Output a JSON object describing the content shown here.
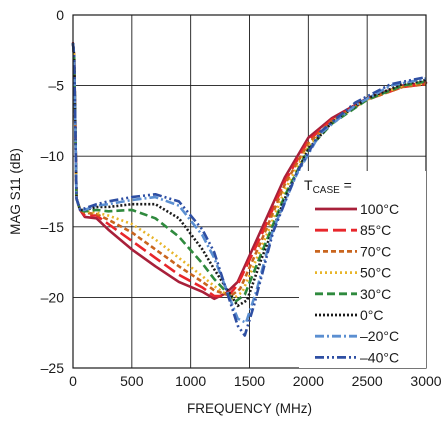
{
  "chart_data": {
    "type": "line",
    "title": "",
    "xlabel": "FREQUENCY (MHz)",
    "ylabel": "MAG S11 (dB)",
    "xlim": [
      0,
      3000
    ],
    "ylim": [
      -25,
      0
    ],
    "xticks": [
      0,
      500,
      1000,
      1500,
      2000,
      2500,
      3000
    ],
    "yticks": [
      0,
      -5,
      -10,
      -15,
      -20,
      -25
    ],
    "ytick_labels": [
      "0",
      "–5",
      "–10",
      "–15",
      "–20",
      "–25"
    ],
    "grid": true,
    "legend": {
      "title_main": "T",
      "title_sub": "CASE",
      "title_suffix": " =",
      "placement": "bottom-right"
    },
    "series": [
      {
        "name": "100°C",
        "color": "#a8203a",
        "dash": "solid",
        "points": [
          [
            0,
            -2
          ],
          [
            10,
            -3
          ],
          [
            30,
            -13
          ],
          [
            60,
            -13.8
          ],
          [
            100,
            -14.3
          ],
          [
            200,
            -14.4
          ],
          [
            300,
            -15.2
          ],
          [
            500,
            -16.6
          ],
          [
            700,
            -17.8
          ],
          [
            900,
            -18.9
          ],
          [
            1100,
            -19.6
          ],
          [
            1200,
            -20.1
          ],
          [
            1300,
            -19.7
          ],
          [
            1400,
            -18.9
          ],
          [
            1600,
            -15.2
          ],
          [
            1800,
            -11.5
          ],
          [
            2000,
            -8.7
          ],
          [
            2200,
            -7.3
          ],
          [
            2500,
            -5.9
          ],
          [
            2800,
            -5.0
          ],
          [
            3000,
            -4.8
          ]
        ]
      },
      {
        "name": "85°C",
        "color": "#e8262b",
        "dash": "long",
        "points": [
          [
            0,
            -2
          ],
          [
            10,
            -3
          ],
          [
            30,
            -13
          ],
          [
            60,
            -13.8
          ],
          [
            100,
            -14.2
          ],
          [
            200,
            -14.2
          ],
          [
            300,
            -14.8
          ],
          [
            500,
            -16.0
          ],
          [
            700,
            -17.2
          ],
          [
            900,
            -18.4
          ],
          [
            1100,
            -19.3
          ],
          [
            1200,
            -19.9
          ],
          [
            1320,
            -19.9
          ],
          [
            1400,
            -19.1
          ],
          [
            1600,
            -15.6
          ],
          [
            1800,
            -11.8
          ],
          [
            2000,
            -8.9
          ],
          [
            2200,
            -7.4
          ],
          [
            2500,
            -6.0
          ],
          [
            2800,
            -5.1
          ],
          [
            3000,
            -4.9
          ]
        ]
      },
      {
        "name": "70°C",
        "color": "#c9651e",
        "dash": "short",
        "points": [
          [
            0,
            -2
          ],
          [
            10,
            -3
          ],
          [
            30,
            -13
          ],
          [
            60,
            -13.8
          ],
          [
            100,
            -14.0
          ],
          [
            200,
            -14.1
          ],
          [
            300,
            -14.5
          ],
          [
            500,
            -15.4
          ],
          [
            700,
            -16.6
          ],
          [
            900,
            -17.8
          ],
          [
            1100,
            -18.9
          ],
          [
            1200,
            -19.5
          ],
          [
            1340,
            -19.9
          ],
          [
            1420,
            -19.4
          ],
          [
            1600,
            -16.0
          ],
          [
            1800,
            -12.0
          ],
          [
            2000,
            -9.1
          ],
          [
            2200,
            -7.5
          ],
          [
            2500,
            -6.0
          ],
          [
            2800,
            -5.1
          ],
          [
            3000,
            -4.9
          ]
        ]
      },
      {
        "name": "50°C",
        "color": "#e8b52a",
        "dash": "dot",
        "points": [
          [
            0,
            -2
          ],
          [
            10,
            -3
          ],
          [
            30,
            -13
          ],
          [
            60,
            -13.8
          ],
          [
            100,
            -13.9
          ],
          [
            200,
            -14.0
          ],
          [
            300,
            -14.2
          ],
          [
            500,
            -14.8
          ],
          [
            700,
            -15.9
          ],
          [
            900,
            -17.2
          ],
          [
            1100,
            -18.5
          ],
          [
            1200,
            -19.2
          ],
          [
            1360,
            -20.1
          ],
          [
            1440,
            -19.6
          ],
          [
            1600,
            -16.5
          ],
          [
            1800,
            -12.4
          ],
          [
            2000,
            -9.3
          ],
          [
            2200,
            -7.6
          ],
          [
            2500,
            -6.0
          ],
          [
            2800,
            -5.0
          ],
          [
            3000,
            -4.8
          ]
        ]
      },
      {
        "name": "30°C",
        "color": "#2f8a3e",
        "dash": "dash",
        "points": [
          [
            0,
            -2
          ],
          [
            10,
            -3
          ],
          [
            30,
            -13
          ],
          [
            60,
            -13.8
          ],
          [
            100,
            -13.9
          ],
          [
            200,
            -13.8
          ],
          [
            300,
            -13.9
          ],
          [
            500,
            -13.8
          ],
          [
            700,
            -14.4
          ],
          [
            900,
            -15.7
          ],
          [
            1100,
            -17.6
          ],
          [
            1200,
            -18.7
          ],
          [
            1380,
            -20.3
          ],
          [
            1460,
            -19.8
          ],
          [
            1600,
            -16.9
          ],
          [
            1800,
            -12.8
          ],
          [
            2000,
            -9.5
          ],
          [
            2200,
            -7.7
          ],
          [
            2500,
            -6.0
          ],
          [
            2800,
            -5.0
          ],
          [
            3000,
            -4.7
          ]
        ]
      },
      {
        "name": "0°C",
        "color": "#1a1a1a",
        "dash": "tight-dot",
        "points": [
          [
            0,
            -2
          ],
          [
            10,
            -3
          ],
          [
            30,
            -13
          ],
          [
            60,
            -13.8
          ],
          [
            100,
            -13.8
          ],
          [
            200,
            -13.6
          ],
          [
            300,
            -13.6
          ],
          [
            500,
            -13.4
          ],
          [
            700,
            -13.4
          ],
          [
            900,
            -14.4
          ],
          [
            1100,
            -16.6
          ],
          [
            1200,
            -18.0
          ],
          [
            1400,
            -20.6
          ],
          [
            1480,
            -20.2
          ],
          [
            1600,
            -17.3
          ],
          [
            1800,
            -13.0
          ],
          [
            2000,
            -9.5
          ],
          [
            2200,
            -7.6
          ],
          [
            2500,
            -5.9
          ],
          [
            2800,
            -4.9
          ],
          [
            3000,
            -4.6
          ]
        ]
      },
      {
        "name": "–20°C",
        "color": "#5b8fd1",
        "dash": "dash-dot",
        "points": [
          [
            0,
            -2
          ],
          [
            10,
            -3
          ],
          [
            30,
            -13
          ],
          [
            60,
            -13.8
          ],
          [
            100,
            -13.8
          ],
          [
            200,
            -13.5
          ],
          [
            300,
            -13.4
          ],
          [
            500,
            -13.1
          ],
          [
            700,
            -12.9
          ],
          [
            900,
            -13.5
          ],
          [
            1100,
            -15.6
          ],
          [
            1200,
            -17.2
          ],
          [
            1400,
            -21.5
          ],
          [
            1470,
            -21.8
          ],
          [
            1560,
            -19.5
          ],
          [
            1700,
            -15.2
          ],
          [
            1900,
            -11.3
          ],
          [
            2100,
            -8.4
          ],
          [
            2400,
            -6.4
          ],
          [
            2700,
            -5.0
          ],
          [
            3000,
            -4.5
          ]
        ]
      },
      {
        "name": "–40°C",
        "color": "#2e4fa3",
        "dash": "dash-dot-dot",
        "points": [
          [
            0,
            -2
          ],
          [
            10,
            -3
          ],
          [
            30,
            -13
          ],
          [
            60,
            -13.8
          ],
          [
            100,
            -13.7
          ],
          [
            200,
            -13.4
          ],
          [
            300,
            -13.2
          ],
          [
            500,
            -12.9
          ],
          [
            700,
            -12.7
          ],
          [
            900,
            -13.2
          ],
          [
            1100,
            -15.2
          ],
          [
            1200,
            -16.8
          ],
          [
            1400,
            -22.0
          ],
          [
            1460,
            -22.7
          ],
          [
            1540,
            -20.5
          ],
          [
            1700,
            -15.4
          ],
          [
            1900,
            -11.2
          ],
          [
            2100,
            -8.3
          ],
          [
            2400,
            -6.2
          ],
          [
            2700,
            -4.9
          ],
          [
            3000,
            -4.4
          ]
        ]
      }
    ]
  }
}
